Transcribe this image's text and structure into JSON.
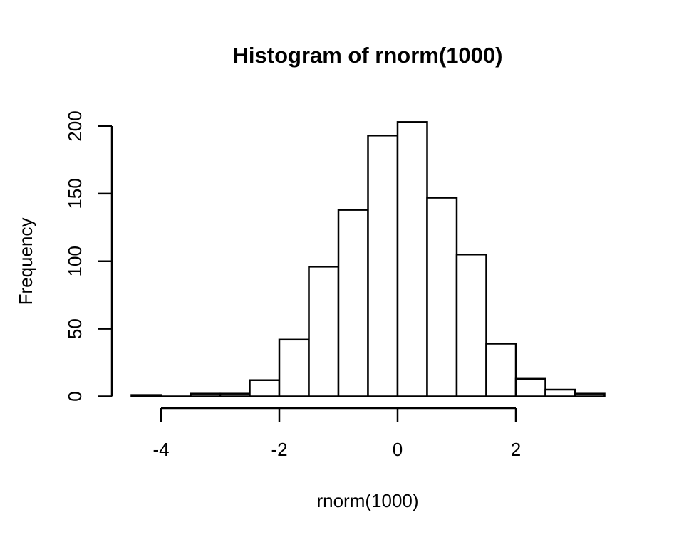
{
  "page": {
    "background": "#ffffff"
  },
  "chart_data": {
    "type": "bar",
    "subtype": "histogram",
    "title": "Histogram of rnorm(1000)",
    "xlabel": "rnorm(1000)",
    "ylabel": "Frequency",
    "bin_edges": [
      -4.5,
      -4,
      -3.5,
      -3,
      -2.5,
      -2,
      -1.5,
      -1,
      -0.5,
      0,
      0.5,
      1,
      1.5,
      2,
      2.5,
      3,
      3.5
    ],
    "counts": [
      1,
      0,
      2,
      2,
      12,
      42,
      96,
      138,
      193,
      203,
      147,
      105,
      39,
      13,
      5,
      2
    ],
    "total_n": 1000,
    "x_ticks": [
      -4,
      -2,
      0,
      2
    ],
    "x_tick_labels": [
      "-4",
      "-2",
      "0",
      "2"
    ],
    "y_ticks": [
      0,
      50,
      100,
      150,
      200
    ],
    "y_tick_labels": [
      "0",
      "50",
      "100",
      "150",
      "200"
    ],
    "xlim": [
      -4.5,
      3.5
    ],
    "x_axis_line_range": [
      -4,
      2
    ],
    "ylim": [
      0,
      200
    ],
    "grid": "off",
    "legend": "none",
    "bar_fill": "#ffffff",
    "stroke_color": "#000000",
    "background": "#ffffff"
  }
}
